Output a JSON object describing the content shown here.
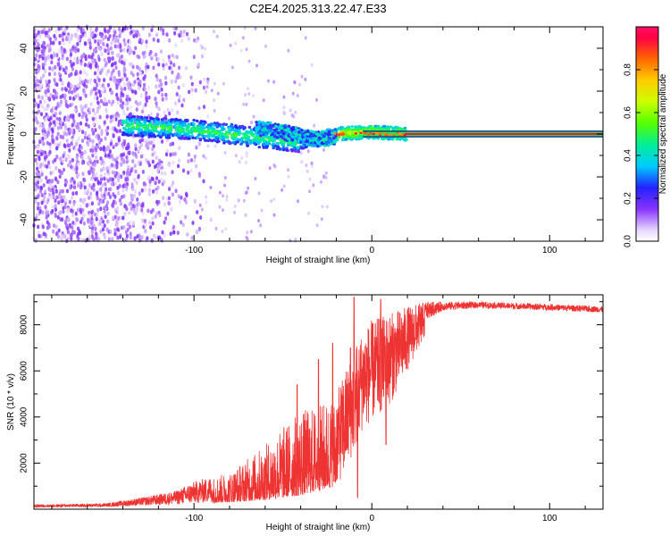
{
  "title": "C2E4.2025.313.22.47.E33",
  "chart_data": [
    {
      "type": "heatmap",
      "name": "spectrogram",
      "xlabel": "Height of straight line (km)",
      "ylabel": "Frequency (Hz)",
      "xlim": [
        -190,
        130
      ],
      "ylim": [
        -50,
        50
      ],
      "xticks": [
        -100,
        0,
        100
      ],
      "xtick_labels": [
        "-100",
        "0",
        "100"
      ],
      "yticks": [
        -40,
        -20,
        0,
        20,
        40
      ],
      "ytick_labels": [
        "-40",
        "-20",
        "0",
        "20",
        "40"
      ],
      "colorbar": {
        "label": "Normalized spectral amplitude",
        "range": [
          0,
          1
        ],
        "ticks": [
          0.0,
          0.2,
          0.4,
          0.6,
          0.8
        ],
        "tick_labels": [
          "0.0",
          "0.2",
          "0.4",
          "0.6",
          "0.8"
        ]
      },
      "features": {
        "carrier_line_hz": 0,
        "carrier_line_from_km": 20,
        "band_upper_near_km": [
          [
            -140,
            4
          ],
          [
            -100,
            2
          ],
          [
            -60,
            -2
          ],
          [
            -40,
            -4
          ],
          [
            -20,
            0
          ],
          [
            0,
            1
          ],
          [
            20,
            0
          ]
        ],
        "band_lower_near_km": [
          [
            -65,
            3
          ],
          [
            -45,
            0
          ],
          [
            -30,
            -3
          ],
          [
            -20,
            -1
          ]
        ],
        "noise_region_km": [
          -190,
          -100
        ]
      }
    },
    {
      "type": "line",
      "name": "snr",
      "xlabel": "Height of straight line (km)",
      "ylabel": "SNR (10 * v/v)",
      "xlim": [
        -190,
        130
      ],
      "ylim": [
        0,
        9300
      ],
      "xticks": [
        -100,
        0,
        100
      ],
      "xtick_labels": [
        "-100",
        "0",
        "100"
      ],
      "yticks": [
        2000,
        4000,
        6000,
        8000
      ],
      "ytick_labels": [
        "2000",
        "4000",
        "6000",
        "8000"
      ],
      "color": "#ee3333",
      "envelope_km": [
        -190,
        -150,
        -130,
        -110,
        -100,
        -80,
        -70,
        -60,
        -50,
        -40,
        -30,
        -20,
        -15,
        -10,
        -5,
        0,
        10,
        20,
        30,
        40,
        60,
        100,
        130
      ],
      "envelope_low": [
        80,
        100,
        150,
        200,
        250,
        300,
        350,
        400,
        500,
        600,
        800,
        1000,
        1500,
        2500,
        3500,
        3800,
        4500,
        6000,
        7500,
        8300,
        8500,
        8400,
        8300
      ],
      "envelope_high": [
        200,
        250,
        500,
        800,
        1200,
        1600,
        2200,
        2800,
        3600,
        4300,
        4500,
        5000,
        6000,
        7000,
        7800,
        8200,
        8500,
        8800,
        9000,
        9000,
        9000,
        8900,
        8800
      ],
      "spikes_km_value": [
        [
          -10,
          9200
        ],
        [
          5,
          9100
        ],
        [
          -12,
          7000
        ],
        [
          -8,
          500
        ],
        [
          8,
          2800
        ],
        [
          -30,
          6500
        ],
        [
          -42,
          5400
        ],
        [
          -22,
          7200
        ]
      ]
    }
  ]
}
